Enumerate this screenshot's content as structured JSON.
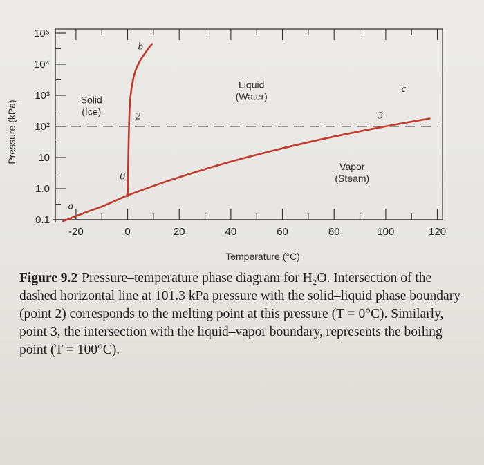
{
  "chart_data": {
    "type": "line",
    "ylabel": "Pressure (kPa)",
    "xlabel": "Temperature (°C)",
    "xlim": [
      -28,
      122
    ],
    "y_scale": "log",
    "ylim": [
      0.1,
      100000
    ],
    "x_ticks": [
      -20,
      0,
      20,
      40,
      60,
      80,
      100,
      120
    ],
    "y_ticks": [
      {
        "value": 0.1,
        "label": "0.1"
      },
      {
        "value": 1,
        "label": "1.0"
      },
      {
        "value": 10,
        "label": "10"
      },
      {
        "value": 100,
        "label": "10²"
      },
      {
        "value": 1000,
        "label": "10³"
      },
      {
        "value": 10000,
        "label": "10⁴"
      },
      {
        "value": 100000,
        "label": "10⁵"
      }
    ],
    "series": [
      {
        "values": [
          {
            "x": -25,
            "y": 0.09
          },
          {
            "x": -20,
            "y": 0.13
          },
          {
            "x": -15,
            "y": 0.19
          },
          {
            "x": -10,
            "y": 0.26
          },
          {
            "x": -5,
            "y": 0.4
          },
          {
            "x": 0.01,
            "y": 0.61
          }
        ]
      },
      {
        "values": [
          {
            "x": 0.01,
            "y": 0.61
          },
          {
            "x": 0.5,
            "y": 100
          },
          {
            "x": 1,
            "y": 1000
          },
          {
            "x": 2.5,
            "y": 5000
          },
          {
            "x": 4.5,
            "y": 12000
          },
          {
            "x": 7,
            "y": 25000
          },
          {
            "x": 9.5,
            "y": 45000
          }
        ]
      },
      {
        "values": [
          {
            "x": 0.01,
            "y": 0.61
          },
          {
            "x": 10,
            "y": 1.23
          },
          {
            "x": 20,
            "y": 2.34
          },
          {
            "x": 30,
            "y": 4.25
          },
          {
            "x": 40,
            "y": 7.38
          },
          {
            "x": 50,
            "y": 12.3
          },
          {
            "x": 60,
            "y": 19.9
          },
          {
            "x": 70,
            "y": 31.2
          },
          {
            "x": 80,
            "y": 47.4
          },
          {
            "x": 90,
            "y": 70.1
          },
          {
            "x": 100,
            "y": 101.3
          },
          {
            "x": 110,
            "y": 143
          },
          {
            "x": 117,
            "y": 180
          }
        ]
      }
    ],
    "dashed_line": {
      "y": 101.3,
      "x_from": -28,
      "x_to": 120
    },
    "region_labels": [
      {
        "lines": [
          "Solid",
          "(Ice)"
        ],
        "x": -14,
        "y": 550
      },
      {
        "lines": [
          "Liquid",
          "(Water)"
        ],
        "x": 48,
        "y": 1700
      },
      {
        "lines": [
          "Vapor",
          "(Steam)"
        ],
        "x": 87,
        "y": 4
      }
    ],
    "point_labels": [
      {
        "label": "a",
        "x": -22,
        "y": 0.22
      },
      {
        "label": "b",
        "x": 5,
        "y": 30000
      },
      {
        "label": "c",
        "x": 107,
        "y": 1300
      },
      {
        "label": "2",
        "x": 4,
        "y": 170
      },
      {
        "label": "3",
        "x": 98,
        "y": 180
      },
      {
        "label": "0",
        "x": -2,
        "y": 2
      }
    ]
  },
  "caption": {
    "figure_number": "Figure 9.2",
    "text": "Pressure–temperature phase diagram for H₂O. Intersection of the dashed horizontal line at 101.3 kPa pressure with the solid–liquid phase boundary (point 2) corresponds to the melting point at this pressure (T = 0°C). Similarly, point 3, the intersection with the liquid–vapor boundary, represents the boiling point (T = 100°C)."
  },
  "colors": {
    "curve": "#c0392b",
    "axis": "#333333",
    "text": "#1e1e1e"
  }
}
